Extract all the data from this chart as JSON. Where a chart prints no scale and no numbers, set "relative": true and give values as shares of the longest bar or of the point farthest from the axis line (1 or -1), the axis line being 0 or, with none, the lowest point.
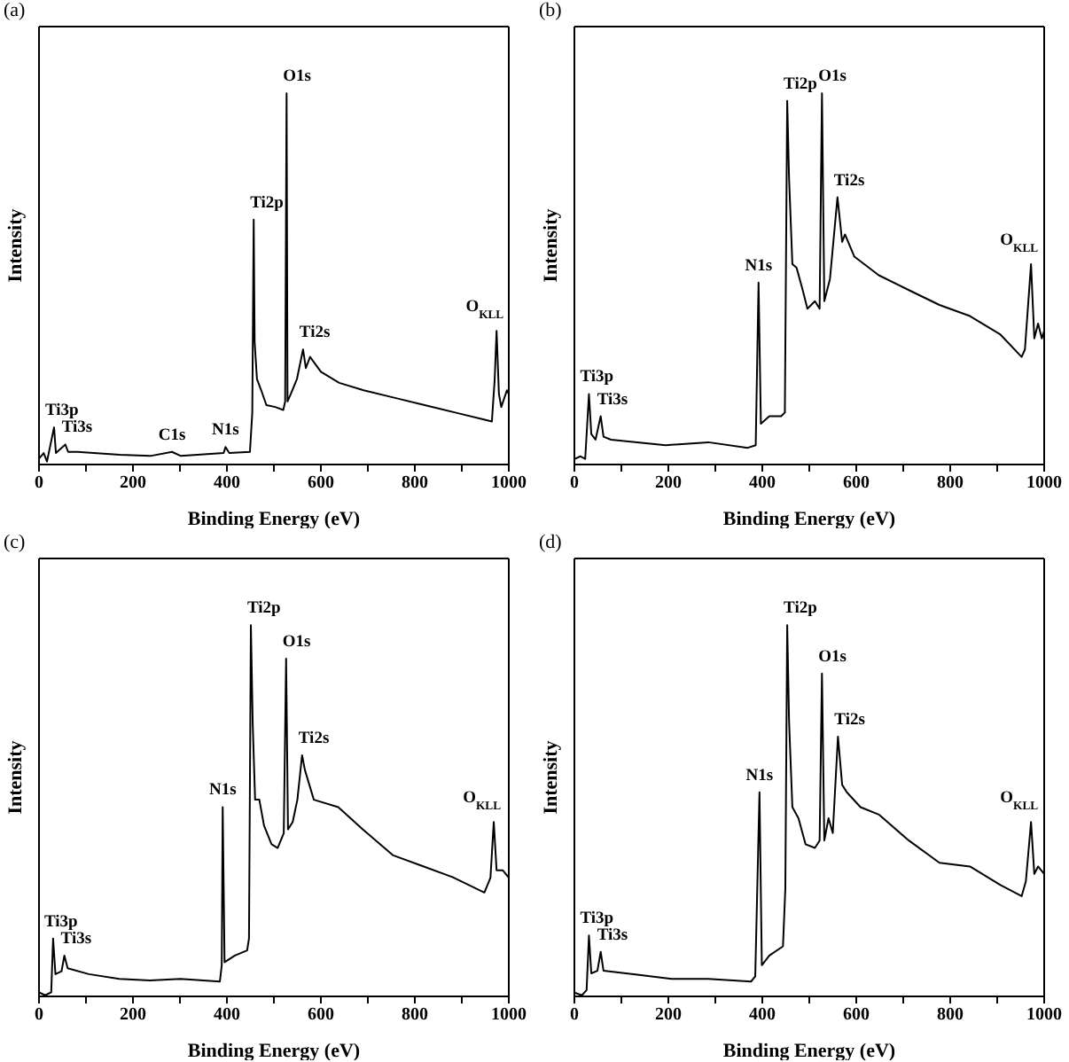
{
  "chart_data": [
    {
      "type": "line",
      "title": "(a)",
      "xlabel": "Binding Energy (eV)",
      "ylabel": "Intensity",
      "relative": true,
      "xlim": [
        0,
        1000
      ],
      "xticks": [
        0,
        {
          "value": 100,
          "label": null
        },
        200,
        {
          "value": 300,
          "label": null
        },
        400,
        {
          "value": 500,
          "label": null
        },
        600,
        {
          "value": 700,
          "label": null
        },
        800,
        {
          "value": 900,
          "label": null
        },
        1000
      ],
      "series": [
        {
          "color": "#000000",
          "x": [
            0,
            10,
            17,
            32,
            36,
            56,
            62,
            82,
            172,
            237,
            283,
            302,
            393,
            397,
            405,
            449,
            454,
            457,
            459,
            464,
            473,
            484,
            503,
            520,
            524,
            527,
            529,
            536,
            549,
            562,
            568,
            577,
            600,
            639,
            691,
            756,
            821,
            886,
            951,
            964,
            970,
            974,
            979,
            984,
            996,
            1000
          ],
          "values": [
            0.016,
            0.031,
            0.008,
            0.1,
            0.031,
            0.054,
            0.034,
            0.034,
            0.026,
            0.023,
            0.034,
            0.023,
            0.031,
            0.047,
            0.031,
            0.034,
            0.14,
            0.66,
            0.33,
            0.23,
            0.2,
            0.16,
            0.155,
            0.147,
            0.17,
            1,
            0.17,
            0.19,
            0.23,
            0.31,
            0.26,
            0.29,
            0.25,
            0.22,
            0.2,
            0.18,
            0.16,
            0.14,
            0.12,
            0.116,
            0.23,
            0.36,
            0.19,
            0.155,
            0.2,
            0.19
          ]
        }
      ],
      "annotations": [
        {
          "text": "Ti3p",
          "x": 32,
          "y": 0.1
        },
        {
          "text": "Ti3s",
          "x": 56,
          "y": 0.054
        },
        {
          "text": "C1s",
          "x": 283,
          "y": 0.034
        },
        {
          "text": "N1s",
          "x": 397,
          "y": 0.047
        },
        {
          "text": "Ti2p",
          "x": 457,
          "y": 0.66
        },
        {
          "text": "O1s",
          "x": 527,
          "y": 1
        },
        {
          "text": "Ti2s",
          "x": 562,
          "y": 0.31
        },
        {
          "text": "O$_{KLL}$",
          "x": 974,
          "y": 0.36
        }
      ]
    },
    {
      "type": "line",
      "title": "(b)",
      "xlabel": "Binding Energy (eV)",
      "ylabel": "Intensity",
      "relative": true,
      "xlim": [
        0,
        1000
      ],
      "xticks": [
        0,
        {
          "value": 100,
          "label": null
        },
        200,
        {
          "value": 300,
          "label": null
        },
        400,
        {
          "value": 500,
          "label": null
        },
        600,
        {
          "value": 700,
          "label": null
        },
        800,
        {
          "value": 900,
          "label": null
        },
        1000
      ],
      "series": [
        {
          "color": "#000000",
          "x": [
            0,
            13,
            23,
            31,
            36,
            45,
            56,
            62,
            78,
            194,
            285,
            369,
            386,
            392,
            397,
            415,
            440,
            448,
            453,
            457,
            464,
            473,
            486,
            496,
            512,
            522,
            527,
            532,
            544,
            560,
            570,
            576,
            596,
            648,
            712,
            777,
            842,
            907,
            952,
            959,
            972,
            979,
            987,
            995,
            1000
          ],
          "values": [
            0.015,
            0.022,
            0.015,
            0.19,
            0.082,
            0.067,
            0.13,
            0.075,
            0.067,
            0.052,
            0.06,
            0.045,
            0.052,
            0.49,
            0.11,
            0.13,
            0.13,
            0.14,
            0.98,
            0.77,
            0.54,
            0.53,
            0.47,
            0.42,
            0.44,
            0.42,
            1,
            0.44,
            0.5,
            0.72,
            0.6,
            0.62,
            0.56,
            0.51,
            0.47,
            0.43,
            0.4,
            0.35,
            0.29,
            0.31,
            0.54,
            0.34,
            0.38,
            0.34,
            0.36
          ]
        }
      ],
      "annotations": [
        {
          "text": "Ti3p",
          "x": 31,
          "y": 0.19
        },
        {
          "text": "Ti3s",
          "x": 56,
          "y": 0.13
        },
        {
          "text": "N1s",
          "x": 392,
          "y": 0.49
        },
        {
          "text": "Ti2p",
          "x": 453,
          "y": 0.98
        },
        {
          "text": "O1s",
          "x": 527,
          "y": 1
        },
        {
          "text": "Ti2s",
          "x": 560,
          "y": 0.72
        },
        {
          "text": "O$_{KLL}$",
          "x": 972,
          "y": 0.54
        }
      ]
    },
    {
      "type": "line",
      "title": "(c)",
      "xlabel": "Binding Energy (eV)",
      "ylabel": "Intensity",
      "relative": true,
      "xlim": [
        0,
        1000
      ],
      "xticks": [
        0,
        {
          "value": 100,
          "label": null
        },
        200,
        {
          "value": 300,
          "label": null
        },
        400,
        {
          "value": 500,
          "label": null
        },
        600,
        {
          "value": 700,
          "label": null
        },
        800,
        {
          "value": 900,
          "label": null
        },
        1000
      ],
      "series": [
        {
          "color": "#000000",
          "x": [
            0,
            13,
            26,
            30,
            35,
            48,
            54,
            61,
            106,
            171,
            236,
            301,
            385,
            389,
            391,
            395,
            417,
            443,
            447,
            451,
            455,
            460,
            469,
            479,
            495,
            508,
            521,
            526,
            530,
            540,
            550,
            560,
            566,
            585,
            637,
            689,
            754,
            819,
            883,
            948,
            961,
            968,
            974,
            987,
            1000
          ],
          "values": [
            0.011,
            0.003,
            0.011,
            0.156,
            0.06,
            0.068,
            0.11,
            0.076,
            0.06,
            0.047,
            0.043,
            0.047,
            0.04,
            0.084,
            0.51,
            0.092,
            0.11,
            0.124,
            0.156,
            1,
            0.73,
            0.53,
            0.53,
            0.46,
            0.41,
            0.4,
            0.44,
            0.91,
            0.45,
            0.47,
            0.53,
            0.65,
            0.61,
            0.53,
            0.51,
            0.45,
            0.38,
            0.35,
            0.32,
            0.28,
            0.32,
            0.47,
            0.34,
            0.34,
            0.32
          ]
        }
      ],
      "annotations": [
        {
          "text": "Ti3p",
          "x": 30,
          "y": 0.156
        },
        {
          "text": "Ti3s",
          "x": 54,
          "y": 0.11
        },
        {
          "text": "N1s",
          "x": 391,
          "y": 0.51
        },
        {
          "text": "Ti2p",
          "x": 451,
          "y": 1
        },
        {
          "text": "O1s",
          "x": 526,
          "y": 0.91
        },
        {
          "text": "Ti2s",
          "x": 560,
          "y": 0.65
        },
        {
          "text": "O$_{KLL}$",
          "x": 968,
          "y": 0.47
        }
      ]
    },
    {
      "type": "line",
      "title": "(d)",
      "xlabel": "Binding Energy (eV)",
      "ylabel": "Intensity",
      "relative": true,
      "xlim": [
        0,
        1000
      ],
      "xticks": [
        0,
        {
          "value": 100,
          "label": null
        },
        200,
        {
          "value": 300,
          "label": null
        },
        400,
        {
          "value": 500,
          "label": null
        },
        600,
        {
          "value": 700,
          "label": null
        },
        800,
        {
          "value": 900,
          "label": null
        },
        1000
      ],
      "series": [
        {
          "color": "#000000",
          "x": [
            0,
            16,
            26,
            31,
            36,
            49,
            56,
            62,
            130,
            207,
            285,
            376,
            385,
            394,
            399,
            415,
            444,
            449,
            453,
            457,
            464,
            477,
            492,
            512,
            522,
            527,
            532,
            541,
            550,
            561,
            570,
            580,
            609,
            648,
            712,
            777,
            842,
            907,
            952,
            961,
            972,
            979,
            987,
            1000
          ],
          "values": [
            0.01,
            0.003,
            0.017,
            0.164,
            0.062,
            0.069,
            0.12,
            0.069,
            0.059,
            0.047,
            0.047,
            0.04,
            0.054,
            0.55,
            0.084,
            0.11,
            0.135,
            0.29,
            1,
            0.74,
            0.51,
            0.48,
            0.41,
            0.4,
            0.42,
            0.87,
            0.42,
            0.48,
            0.44,
            0.7,
            0.57,
            0.55,
            0.51,
            0.49,
            0.42,
            0.36,
            0.35,
            0.3,
            0.27,
            0.31,
            0.47,
            0.33,
            0.35,
            0.33
          ]
        }
      ],
      "annotations": [
        {
          "text": "Ti3p",
          "x": 31,
          "y": 0.164
        },
        {
          "text": "Ti3s",
          "x": 56,
          "y": 0.12
        },
        {
          "text": "N1s",
          "x": 394,
          "y": 0.55
        },
        {
          "text": "Ti2p",
          "x": 453,
          "y": 1
        },
        {
          "text": "O1s",
          "x": 527,
          "y": 0.87
        },
        {
          "text": "Ti2s",
          "x": 561,
          "y": 0.7
        },
        {
          "text": "O$_{KLL}$",
          "x": 972,
          "y": 0.47
        }
      ]
    }
  ]
}
